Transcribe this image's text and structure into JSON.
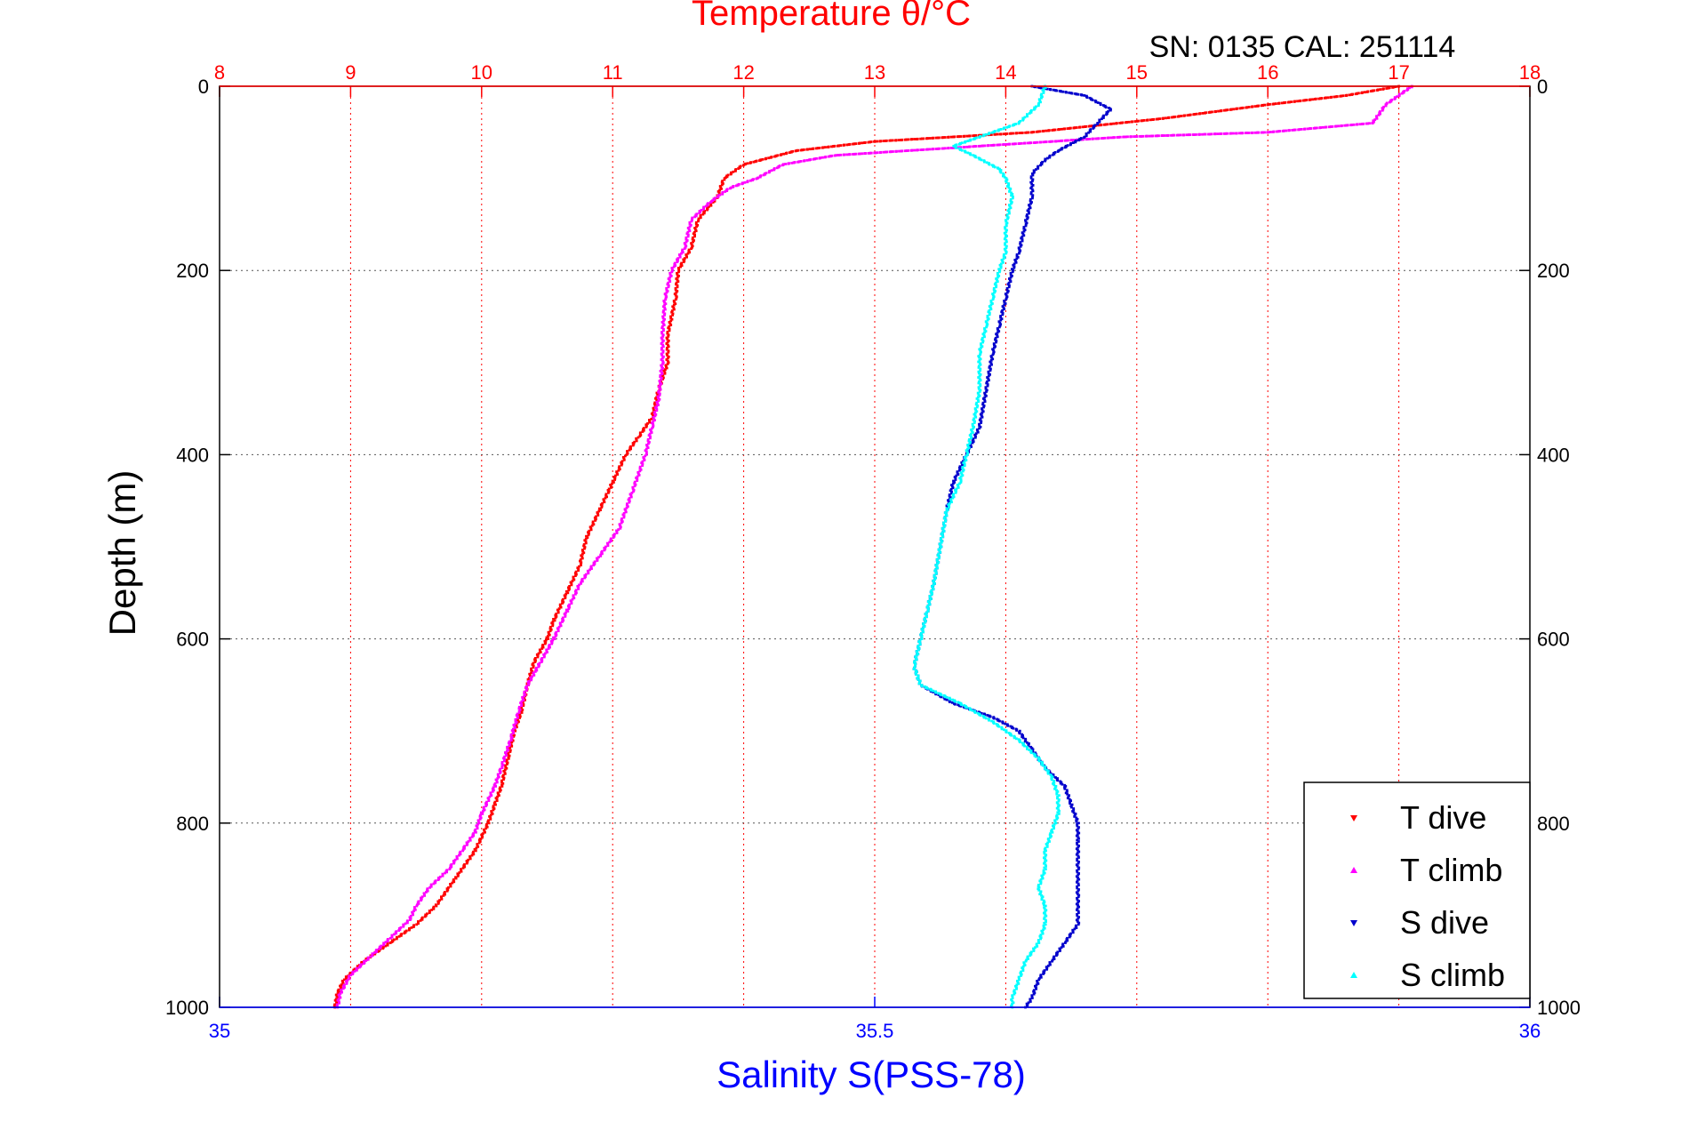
{
  "chart_data": {
    "type": "scatter",
    "title_top": "Temperature θ/°C",
    "subtitle": "SN: 0135  CAL: 251114",
    "ylabel": "Depth (m)",
    "xlabel_bottom": "Salinity S(PSS-78)",
    "ylim": [
      0,
      1000
    ],
    "y_reversed": true,
    "yticks": [
      "0",
      "200",
      "400",
      "600",
      "800",
      "1000"
    ],
    "x_top": {
      "label": "Temperature θ/°C",
      "lim": [
        8,
        18
      ],
      "ticks": [
        "8",
        "9",
        "10",
        "11",
        "12",
        "13",
        "14",
        "15",
        "16",
        "17",
        "18"
      ]
    },
    "x_bottom": {
      "label": "Salinity S(PSS-78)",
      "lim": [
        35,
        36
      ],
      "ticks": [
        "35",
        "35.5",
        "36"
      ]
    },
    "grid": true,
    "legend_position": "bottom-right",
    "legend": [
      "T dive",
      "T climb",
      "S dive",
      "S climb"
    ],
    "colors": {
      "T dive": "#ff0000",
      "T climb": "#ff00ff",
      "S dive": "#0000cc",
      "S climb": "#00ffff",
      "top_axis": "#ff0000",
      "bottom_axis": "#0000ff"
    },
    "series": [
      {
        "name": "T dive",
        "axis": "top",
        "marker": "triangle-down",
        "points": [
          [
            17.0,
            0
          ],
          [
            16.6,
            10
          ],
          [
            16.0,
            20
          ],
          [
            15.2,
            35
          ],
          [
            14.2,
            50
          ],
          [
            13.0,
            60
          ],
          [
            12.4,
            70
          ],
          [
            12.0,
            85
          ],
          [
            11.85,
            100
          ],
          [
            11.8,
            120
          ],
          [
            11.65,
            145
          ],
          [
            11.6,
            175
          ],
          [
            11.5,
            200
          ],
          [
            11.48,
            230
          ],
          [
            11.42,
            270
          ],
          [
            11.42,
            300
          ],
          [
            11.35,
            330
          ],
          [
            11.3,
            360
          ],
          [
            11.2,
            380
          ],
          [
            11.1,
            400
          ],
          [
            11.0,
            430
          ],
          [
            10.9,
            460
          ],
          [
            10.8,
            490
          ],
          [
            10.75,
            520
          ],
          [
            10.65,
            550
          ],
          [
            10.55,
            580
          ],
          [
            10.5,
            600
          ],
          [
            10.4,
            625
          ],
          [
            10.35,
            650
          ],
          [
            10.3,
            680
          ],
          [
            10.25,
            700
          ],
          [
            10.2,
            730
          ],
          [
            10.15,
            760
          ],
          [
            10.1,
            780
          ],
          [
            10.05,
            800
          ],
          [
            9.95,
            830
          ],
          [
            9.8,
            860
          ],
          [
            9.65,
            890
          ],
          [
            9.5,
            910
          ],
          [
            9.3,
            930
          ],
          [
            9.1,
            950
          ],
          [
            8.95,
            970
          ],
          [
            8.9,
            985
          ],
          [
            8.88,
            1000
          ]
        ]
      },
      {
        "name": "T climb",
        "axis": "top",
        "marker": "triangle-up",
        "points": [
          [
            17.1,
            0
          ],
          [
            16.9,
            20
          ],
          [
            16.8,
            40
          ],
          [
            16.0,
            50
          ],
          [
            14.9,
            55
          ],
          [
            13.8,
            65
          ],
          [
            12.7,
            75
          ],
          [
            12.3,
            85
          ],
          [
            12.1,
            100
          ],
          [
            11.9,
            110
          ],
          [
            11.75,
            125
          ],
          [
            11.6,
            145
          ],
          [
            11.55,
            175
          ],
          [
            11.45,
            200
          ],
          [
            11.4,
            230
          ],
          [
            11.38,
            270
          ],
          [
            11.38,
            300
          ],
          [
            11.35,
            340
          ],
          [
            11.3,
            370
          ],
          [
            11.25,
            400
          ],
          [
            11.15,
            440
          ],
          [
            11.05,
            480
          ],
          [
            10.9,
            510
          ],
          [
            10.75,
            540
          ],
          [
            10.65,
            570
          ],
          [
            10.55,
            600
          ],
          [
            10.45,
            625
          ],
          [
            10.35,
            650
          ],
          [
            10.28,
            680
          ],
          [
            10.22,
            710
          ],
          [
            10.15,
            740
          ],
          [
            10.1,
            760
          ],
          [
            10.0,
            790
          ],
          [
            9.95,
            810
          ],
          [
            9.85,
            830
          ],
          [
            9.75,
            850
          ],
          [
            9.6,
            870
          ],
          [
            9.5,
            890
          ],
          [
            9.45,
            905
          ],
          [
            9.3,
            925
          ],
          [
            9.15,
            945
          ],
          [
            9.0,
            965
          ],
          [
            8.92,
            985
          ],
          [
            8.9,
            1000
          ]
        ]
      },
      {
        "name": "S dive",
        "axis": "bottom",
        "marker": "triangle-down",
        "points": [
          [
            35.62,
            0
          ],
          [
            35.66,
            10
          ],
          [
            35.68,
            25
          ],
          [
            35.67,
            40
          ],
          [
            35.66,
            55
          ],
          [
            35.64,
            70
          ],
          [
            35.63,
            80
          ],
          [
            35.62,
            95
          ],
          [
            35.62,
            120
          ],
          [
            35.615,
            150
          ],
          [
            35.61,
            180
          ],
          [
            35.605,
            200
          ],
          [
            35.6,
            230
          ],
          [
            35.595,
            260
          ],
          [
            35.59,
            290
          ],
          [
            35.585,
            330
          ],
          [
            35.58,
            370
          ],
          [
            35.57,
            400
          ],
          [
            35.56,
            430
          ],
          [
            35.555,
            460
          ],
          [
            35.55,
            500
          ],
          [
            35.545,
            540
          ],
          [
            35.54,
            570
          ],
          [
            35.535,
            600
          ],
          [
            35.53,
            630
          ],
          [
            35.535,
            650
          ],
          [
            35.56,
            670
          ],
          [
            35.59,
            685
          ],
          [
            35.61,
            700
          ],
          [
            35.62,
            720
          ],
          [
            35.63,
            740
          ],
          [
            35.645,
            760
          ],
          [
            35.65,
            780
          ],
          [
            35.655,
            800
          ],
          [
            35.655,
            820
          ],
          [
            35.655,
            850
          ],
          [
            35.655,
            880
          ],
          [
            35.655,
            910
          ],
          [
            35.645,
            930
          ],
          [
            35.635,
            950
          ],
          [
            35.625,
            970
          ],
          [
            35.62,
            990
          ],
          [
            35.615,
            1000
          ]
        ]
      },
      {
        "name": "S climb",
        "axis": "bottom",
        "marker": "triangle-up",
        "points": [
          [
            35.63,
            0
          ],
          [
            35.625,
            20
          ],
          [
            35.61,
            40
          ],
          [
            35.58,
            55
          ],
          [
            35.56,
            65
          ],
          [
            35.575,
            75
          ],
          [
            35.595,
            90
          ],
          [
            35.6,
            100
          ],
          [
            35.605,
            120
          ],
          [
            35.6,
            150
          ],
          [
            35.6,
            180
          ],
          [
            35.595,
            200
          ],
          [
            35.59,
            230
          ],
          [
            35.585,
            260
          ],
          [
            35.58,
            290
          ],
          [
            35.58,
            330
          ],
          [
            35.575,
            370
          ],
          [
            35.57,
            400
          ],
          [
            35.565,
            430
          ],
          [
            35.555,
            460
          ],
          [
            35.55,
            500
          ],
          [
            35.545,
            540
          ],
          [
            35.54,
            570
          ],
          [
            35.535,
            600
          ],
          [
            35.53,
            630
          ],
          [
            35.535,
            650
          ],
          [
            35.565,
            670
          ],
          [
            35.59,
            690
          ],
          [
            35.61,
            710
          ],
          [
            35.625,
            730
          ],
          [
            35.635,
            750
          ],
          [
            35.64,
            770
          ],
          [
            35.64,
            790
          ],
          [
            35.635,
            810
          ],
          [
            35.63,
            830
          ],
          [
            35.63,
            850
          ],
          [
            35.625,
            870
          ],
          [
            35.63,
            890
          ],
          [
            35.63,
            910
          ],
          [
            35.625,
            930
          ],
          [
            35.615,
            950
          ],
          [
            35.61,
            970
          ],
          [
            35.605,
            990
          ],
          [
            35.605,
            1000
          ]
        ]
      }
    ]
  }
}
